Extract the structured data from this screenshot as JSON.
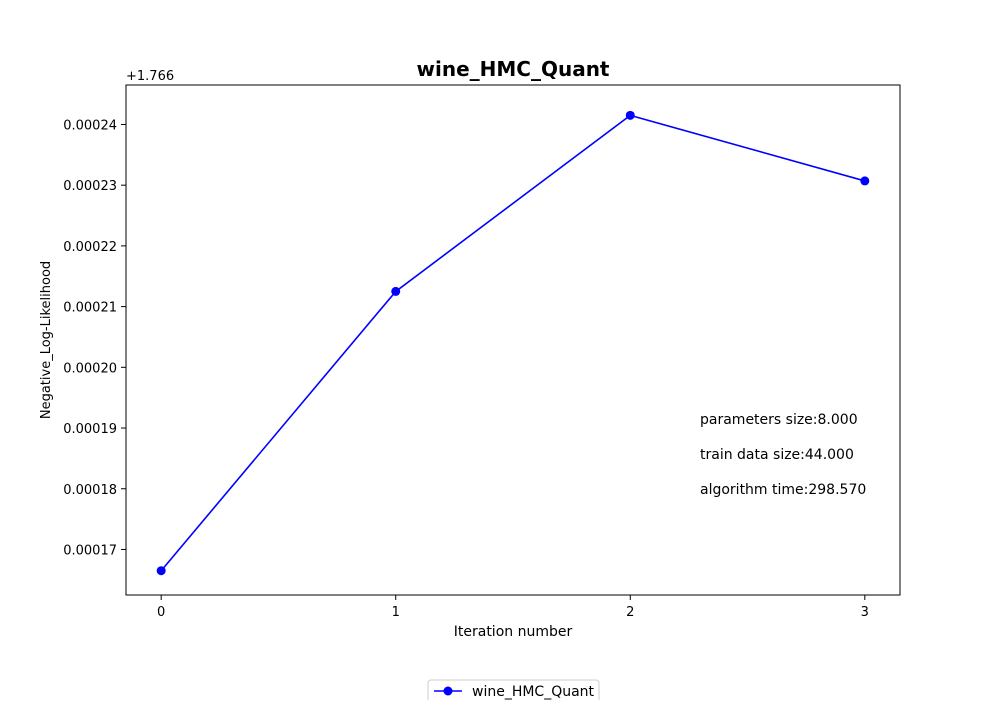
{
  "chart_data": {
    "type": "line",
    "title": "wine_HMC_Quant",
    "xlabel": "Iteration number",
    "ylabel": "Negative_Log-Likelihood",
    "y_offset_label": "+1.766",
    "x": [
      0,
      1,
      2,
      3
    ],
    "x_ticks": [
      "0",
      "1",
      "2",
      "3"
    ],
    "y_ticks": [
      "0.00017",
      "0.00018",
      "0.00019",
      "0.00020",
      "0.00021",
      "0.00022",
      "0.00023",
      "0.00024"
    ],
    "y_tick_values": [
      0.00017,
      0.00018,
      0.00019,
      0.0002,
      0.00021,
      0.00022,
      0.00023,
      0.00024
    ],
    "xlim": [
      -0.15,
      3.15
    ],
    "ylim": [
      0.0001625,
      0.0002465
    ],
    "series": [
      {
        "name": "wine_HMC_Quant",
        "color": "#0000ff",
        "values": [
          0.0001665,
          0.0002125,
          0.0002415,
          0.0002307
        ]
      }
    ],
    "annotations": [
      "parameters size:8.000",
      "train data size:44.000",
      "algorithm time:298.570"
    ],
    "legend": "bottom-center",
    "grid": false
  }
}
